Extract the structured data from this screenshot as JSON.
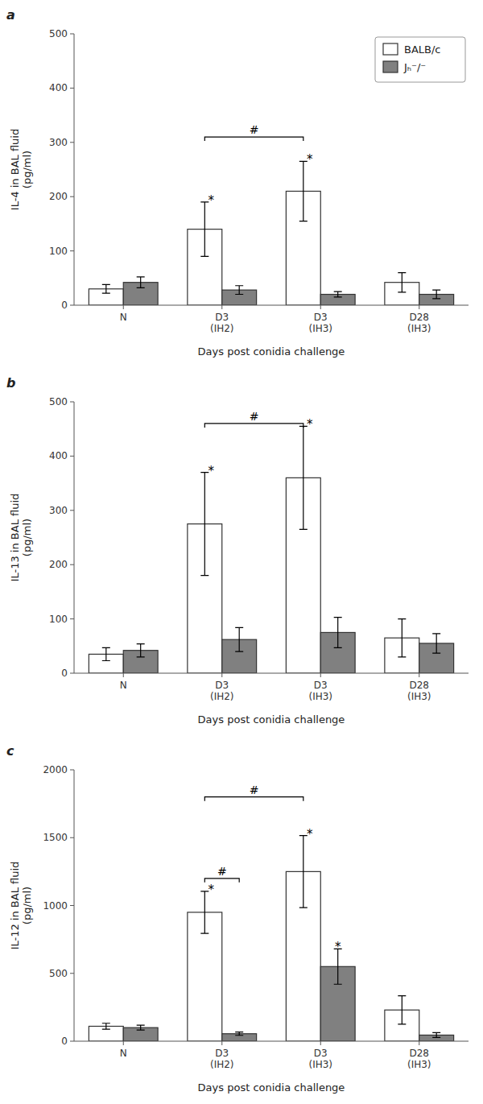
{
  "chart_data": [
    {
      "type": "bar",
      "label": "a",
      "ylabel": "IL-4 in BAL fluid\n(pg/ml)",
      "xlabel": "Days post conidia challenge",
      "categories": [
        "N",
        "D3\n(IH2)",
        "D3\n(IH3)",
        "D28\n(IH3)"
      ],
      "series": [
        {
          "name": "BALB/c",
          "color": "#ffffff",
          "values": [
            30,
            140,
            210,
            42
          ],
          "errors": [
            8,
            50,
            55,
            18
          ],
          "annotations": [
            null,
            "*",
            "*",
            null
          ]
        },
        {
          "name": "Jₕ⁻/⁻",
          "color": "#808080",
          "values": [
            42,
            28,
            20,
            20
          ],
          "errors": [
            10,
            8,
            5,
            8
          ],
          "annotations": [
            null,
            null,
            null,
            null
          ]
        }
      ],
      "brackets": [
        {
          "text": "#",
          "y": 310,
          "from": {
            "series": 0,
            "category": 1
          },
          "to": {
            "series": 0,
            "category": 2
          }
        }
      ],
      "ylim": [
        0,
        500
      ],
      "yticks": [
        0,
        100,
        200,
        300,
        400,
        500
      ],
      "grid": false,
      "legend": "upper right"
    },
    {
      "type": "bar",
      "label": "b",
      "ylabel": "IL-13 in BAL fluid\n(pg/ml)",
      "xlabel": "Days post conidia challenge",
      "categories": [
        "N",
        "D3\n(IH2)",
        "D3\n(IH3)",
        "D28\n(IH3)"
      ],
      "series": [
        {
          "name": "BALB/c",
          "color": "#ffffff",
          "values": [
            35,
            275,
            360,
            65
          ],
          "errors": [
            12,
            95,
            95,
            35
          ],
          "annotations": [
            null,
            "*",
            "*",
            null
          ]
        },
        {
          "name": "Jₕ⁻/⁻",
          "color": "#808080",
          "values": [
            42,
            62,
            75,
            55
          ],
          "errors": [
            12,
            22,
            28,
            18
          ],
          "annotations": [
            null,
            null,
            null,
            null
          ]
        }
      ],
      "brackets": [
        {
          "text": "#",
          "y": 460,
          "from": {
            "series": 0,
            "category": 1
          },
          "to": {
            "series": 0,
            "category": 2
          }
        }
      ],
      "ylim": [
        0,
        500
      ],
      "yticks": [
        0,
        100,
        200,
        300,
        400,
        500
      ],
      "grid": false
    },
    {
      "type": "bar",
      "label": "c",
      "ylabel": "IL-12 in BAL fluid\n(pg/ml)",
      "xlabel": "Days post conidia challenge",
      "categories": [
        "N",
        "D3\n(IH2)",
        "D3\n(IH3)",
        "D28\n(IH3)"
      ],
      "series": [
        {
          "name": "BALB/c",
          "color": "#ffffff",
          "values": [
            110,
            950,
            1250,
            230
          ],
          "errors": [
            22,
            155,
            265,
            105
          ],
          "annotations": [
            null,
            "*",
            "*",
            null
          ]
        },
        {
          "name": "Jₕ⁻/⁻",
          "color": "#808080",
          "values": [
            100,
            55,
            550,
            45
          ],
          "errors": [
            18,
            12,
            130,
            18
          ],
          "annotations": [
            null,
            null,
            "*",
            null
          ]
        }
      ],
      "brackets": [
        {
          "text": "#",
          "y": 1200,
          "from": {
            "series": 0,
            "category": 1
          },
          "to": {
            "series": 1,
            "category": 1
          }
        },
        {
          "text": "#",
          "y": 1800,
          "from": {
            "series": 0,
            "category": 1
          },
          "to": {
            "series": 0,
            "category": 2
          }
        }
      ],
      "ylim": [
        0,
        2000
      ],
      "yticks": [
        0,
        500,
        1000,
        1500,
        2000
      ],
      "grid": false
    }
  ]
}
